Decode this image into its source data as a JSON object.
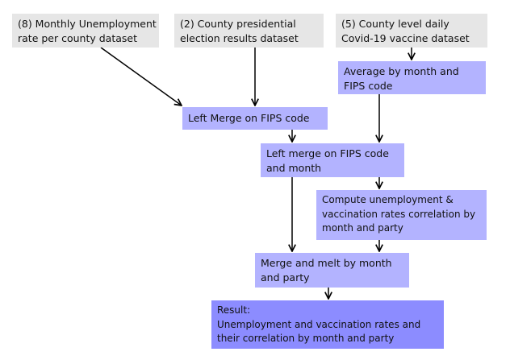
{
  "diagram": {
    "nodes": {
      "unemployment_dataset": {
        "lines": [
          "(8) Monthly Unemployment",
          "rate per county dataset"
        ]
      },
      "election_dataset": {
        "lines": [
          "(2) County presidential",
          "election results dataset"
        ]
      },
      "vaccine_dataset": {
        "lines": [
          "(5) County level daily",
          "Covid-19 vaccine dataset"
        ]
      },
      "average_by_month": {
        "lines": [
          "Average by month and",
          "FIPS code"
        ]
      },
      "left_merge_fips": {
        "lines": [
          "Left Merge on FIPS code"
        ]
      },
      "left_merge_fips_month": {
        "lines": [
          "Left merge on FIPS code",
          "and month"
        ]
      },
      "compute_correlation": {
        "lines": [
          "Compute unemployment &",
          "vaccination rates correlation by",
          "month and party"
        ]
      },
      "merge_melt": {
        "lines": [
          "Merge and melt by month",
          "and party"
        ]
      },
      "result": {
        "lines": [
          "Result:",
          "Unemployment and vaccination rates and",
          "their correlation by month and party"
        ]
      }
    },
    "edges": [
      {
        "from": "unemployment_dataset",
        "to": "left_merge_fips"
      },
      {
        "from": "election_dataset",
        "to": "left_merge_fips"
      },
      {
        "from": "vaccine_dataset",
        "to": "average_by_month"
      },
      {
        "from": "average_by_month",
        "to": "left_merge_fips_month"
      },
      {
        "from": "left_merge_fips",
        "to": "left_merge_fips_month"
      },
      {
        "from": "left_merge_fips_month",
        "to": "compute_correlation"
      },
      {
        "from": "left_merge_fips_month",
        "to": "merge_melt"
      },
      {
        "from": "compute_correlation",
        "to": "merge_melt"
      },
      {
        "from": "merge_melt",
        "to": "result"
      }
    ],
    "colors": {
      "source_box": "#e6e6e6",
      "process_box": "#b3b3ff",
      "result_box": "#8c8cff",
      "arrow": "#000000"
    }
  }
}
